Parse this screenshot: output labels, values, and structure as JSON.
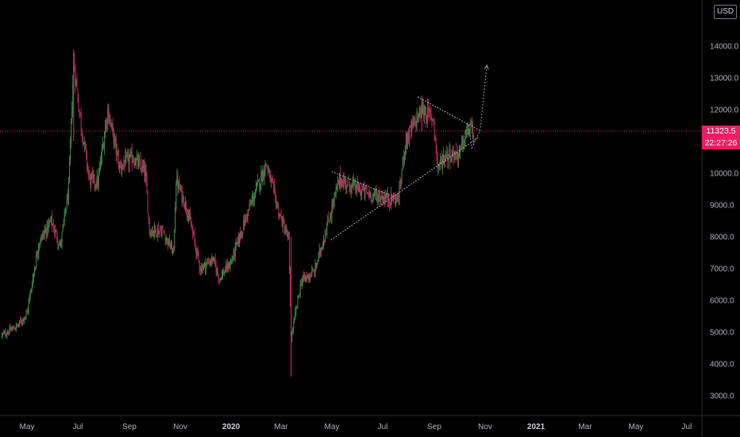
{
  "chart_data": {
    "type": "candlestick",
    "currency": "USD",
    "last_price": "11323.5",
    "countdown": "22:27:26",
    "y_ticks": [
      "3000.0",
      "4000.0",
      "5000.0",
      "6000.0",
      "7000.0",
      "8000.0",
      "9000.0",
      "10000.0",
      "11000.0",
      "12000.0",
      "13000.0",
      "14000.0"
    ],
    "ylim": [
      2500,
      15100
    ],
    "x_ticks": [
      {
        "label": "May",
        "year": false
      },
      {
        "label": "Jul",
        "year": false
      },
      {
        "label": "Sep",
        "year": false
      },
      {
        "label": "Nov",
        "year": false
      },
      {
        "label": "2020",
        "year": true
      },
      {
        "label": "Mar",
        "year": false
      },
      {
        "label": "May",
        "year": false
      },
      {
        "label": "Jul",
        "year": false
      },
      {
        "label": "Sep",
        "year": false
      },
      {
        "label": "Nov",
        "year": false
      },
      {
        "label": "2021",
        "year": true
      },
      {
        "label": "Mar",
        "year": false
      },
      {
        "label": "May",
        "year": false
      },
      {
        "label": "Jul",
        "year": false
      }
    ],
    "price_path": [
      [
        "2019-04-01",
        4900
      ],
      [
        "2019-04-20",
        5200
      ],
      [
        "2019-05-01",
        5600
      ],
      [
        "2019-05-15",
        7800
      ],
      [
        "2019-05-30",
        8500
      ],
      [
        "2019-06-10",
        7700
      ],
      [
        "2019-06-20",
        9500
      ],
      [
        "2019-06-26",
        13500
      ],
      [
        "2019-07-05",
        11500
      ],
      [
        "2019-07-15",
        9800
      ],
      [
        "2019-07-25",
        9700
      ],
      [
        "2019-08-06",
        12000
      ],
      [
        "2019-08-20",
        10200
      ],
      [
        "2019-09-05",
        10500
      ],
      [
        "2019-09-20",
        10000
      ],
      [
        "2019-09-25",
        8200
      ],
      [
        "2019-10-10",
        8200
      ],
      [
        "2019-10-24",
        7500
      ],
      [
        "2019-10-27",
        9800
      ],
      [
        "2019-11-10",
        8800
      ],
      [
        "2019-11-25",
        7000
      ],
      [
        "2019-12-10",
        7300
      ],
      [
        "2019-12-18",
        6700
      ],
      [
        "2020-01-01",
        7200
      ],
      [
        "2020-01-20",
        8700
      ],
      [
        "2020-02-12",
        10300
      ],
      [
        "2020-02-28",
        8700
      ],
      [
        "2020-03-10",
        7900
      ],
      [
        "2020-03-13",
        4800
      ],
      [
        "2020-03-25",
        6600
      ],
      [
        "2020-04-10",
        6900
      ],
      [
        "2020-04-29",
        8700
      ],
      [
        "2020-05-10",
        9800
      ],
      [
        "2020-06-01",
        9500
      ],
      [
        "2020-06-20",
        9300
      ],
      [
        "2020-07-10",
        9200
      ],
      [
        "2020-07-20",
        9200
      ],
      [
        "2020-07-28",
        11000
      ],
      [
        "2020-08-17",
        12000
      ],
      [
        "2020-08-31",
        11700
      ],
      [
        "2020-09-05",
        10200
      ],
      [
        "2020-09-15",
        10600
      ],
      [
        "2020-10-01",
        10600
      ],
      [
        "2020-10-10",
        11300
      ],
      [
        "2020-10-14",
        11400
      ],
      [
        "2020-10-18",
        11323
      ]
    ],
    "spikes": [
      [
        "2019-06-26",
        13900,
        11000
      ],
      [
        "2020-03-13",
        8000,
        3600
      ],
      [
        "2020-08-17",
        12450,
        11300
      ]
    ],
    "annotations": {
      "trend_lines": [
        {
          "style": "dotted",
          "from": [
            "2020-04-30",
            7900
          ],
          "to": [
            "2020-10-25",
            11150
          ]
        },
        {
          "style": "dotted",
          "from": [
            "2020-08-12",
            12400
          ],
          "to": [
            "2020-10-25",
            11350
          ]
        },
        {
          "style": "dotted",
          "from": [
            "2020-05-01",
            10050
          ],
          "to": [
            "2020-07-10",
            9300
          ]
        }
      ],
      "arrow_path": [
        [
          "2020-10-12",
          11500
        ],
        [
          "2020-10-16",
          10800
        ],
        [
          "2020-10-26",
          11350
        ],
        [
          "2020-11-03",
          13400
        ]
      ]
    }
  }
}
